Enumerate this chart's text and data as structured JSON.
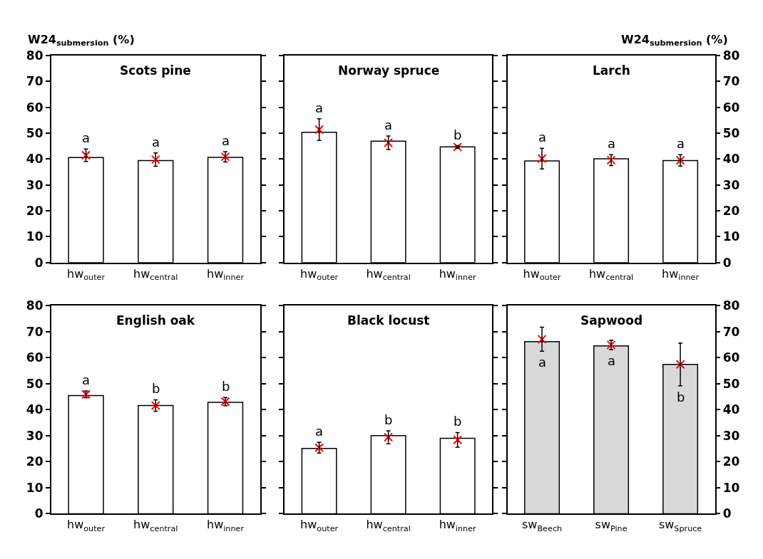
{
  "chart_data": [
    {
      "type": "bar",
      "title": "Scots pine",
      "ylabel": "W24$_{submersion}$ (%)",
      "categories": [
        "hw$_{outer}$",
        "hw$_{central}$",
        "hw$_{inner}$"
      ],
      "ylim": [
        0,
        80
      ],
      "yticks": [
        0,
        10,
        20,
        30,
        40,
        50,
        60,
        70,
        80
      ],
      "series": [
        {
          "color": "#ffffff",
          "values": [
            40.6,
            39.4,
            40.7
          ]
        },
        {
          "type": "scatter",
          "marker": "cross",
          "color": "#ff0000",
          "values": [
            41.5,
            39.8,
            40.9
          ],
          "errors": [
            2.4,
            2.6,
            2.0
          ]
        }
      ],
      "annotations": [
        "a",
        "a",
        "a"
      ]
    },
    {
      "type": "bar",
      "title": "Norway spruce",
      "categories": [
        "hw$_{outer}$",
        "hw$_{central}$",
        "hw$_{inner}$"
      ],
      "ylim": [
        0,
        80
      ],
      "yticks": [
        0,
        10,
        20,
        30,
        40,
        50,
        60,
        70,
        80
      ],
      "tick_labels": "x",
      "series": [
        {
          "color": "#ffffff",
          "values": [
            50.4,
            46.9,
            44.7
          ]
        },
        {
          "type": "scatter",
          "marker": "cross",
          "color": "#ff0000",
          "values": [
            51.4,
            46.3,
            44.7
          ],
          "errors": [
            4.2,
            2.6,
            0.5
          ]
        }
      ],
      "annotations": [
        "a",
        "a",
        "b"
      ]
    },
    {
      "type": "bar",
      "title": "Larch",
      "y2label": "W24$_{submersion}$ (%)",
      "categories": [
        "hw$_{outer}$",
        "hw$_{central}$",
        "hw$_{inner}$"
      ],
      "y2lim": [
        0,
        80
      ],
      "y2ticks": [
        0,
        10,
        20,
        30,
        40,
        50,
        60,
        70,
        80
      ],
      "series": [
        {
          "axis": "y2",
          "color": "#ffffff",
          "values": [
            39.3,
            40.1,
            39.4
          ]
        },
        {
          "type": "scatter",
          "axis": "y2",
          "marker": "cross",
          "color": "#ff0000",
          "values": [
            40.2,
            39.6,
            39.5
          ],
          "errors": [
            4.0,
            2.1,
            2.2
          ]
        }
      ],
      "annotations": [
        "a",
        "a",
        "a"
      ]
    },
    {
      "type": "bar",
      "title": "English oak",
      "categories": [
        "hw$_{outer}$",
        "hw$_{central}$",
        "hw$_{inner}$"
      ],
      "ylim": [
        0,
        80
      ],
      "yticks": [
        0,
        10,
        20,
        30,
        40,
        50,
        60,
        70,
        80
      ],
      "series": [
        {
          "color": "#ffffff",
          "values": [
            45.4,
            41.6,
            42.8
          ]
        },
        {
          "type": "scatter",
          "marker": "cross",
          "color": "#ff0000",
          "values": [
            45.9,
            41.6,
            43.1
          ],
          "errors": [
            1.3,
            2.2,
            1.6
          ]
        }
      ],
      "annotations": [
        "a",
        "b",
        "b"
      ]
    },
    {
      "type": "bar",
      "title": "Black locust",
      "categories": [
        "hw$_{outer}$",
        "hw$_{central}$",
        "hw$_{inner}$"
      ],
      "ylim": [
        0,
        80
      ],
      "yticks": [
        0,
        10,
        20,
        30,
        40,
        50,
        60,
        70,
        80
      ],
      "tick_labels": "x",
      "series": [
        {
          "color": "#ffffff",
          "values": [
            25.1,
            30.0,
            29.0
          ]
        },
        {
          "type": "scatter",
          "marker": "cross",
          "color": "#ff0000",
          "values": [
            25.4,
            29.4,
            28.4
          ],
          "errors": [
            2.1,
            2.5,
            2.8
          ]
        }
      ],
      "annotations": [
        "a",
        "b",
        "b"
      ]
    },
    {
      "type": "bar",
      "title": "Sapwood",
      "categories": [
        "sw$_{Beech}$",
        "sw$_{Pine}$",
        "sw$_{Spruce}$"
      ],
      "y2lim": [
        0,
        80
      ],
      "y2ticks": [
        0,
        10,
        20,
        30,
        40,
        50,
        60,
        70,
        80
      ],
      "series": [
        {
          "axis": "y2",
          "color": "#d9d9d9",
          "values": [
            66.2,
            64.5,
            57.4
          ]
        },
        {
          "type": "scatter",
          "axis": "y2",
          "marker": "cross",
          "color": "#ff0000",
          "values": [
            67.1,
            64.9,
            57.4
          ],
          "errors": [
            4.6,
            1.8,
            8.2
          ]
        }
      ],
      "annotations": [
        "a",
        "a",
        "b"
      ]
    }
  ]
}
